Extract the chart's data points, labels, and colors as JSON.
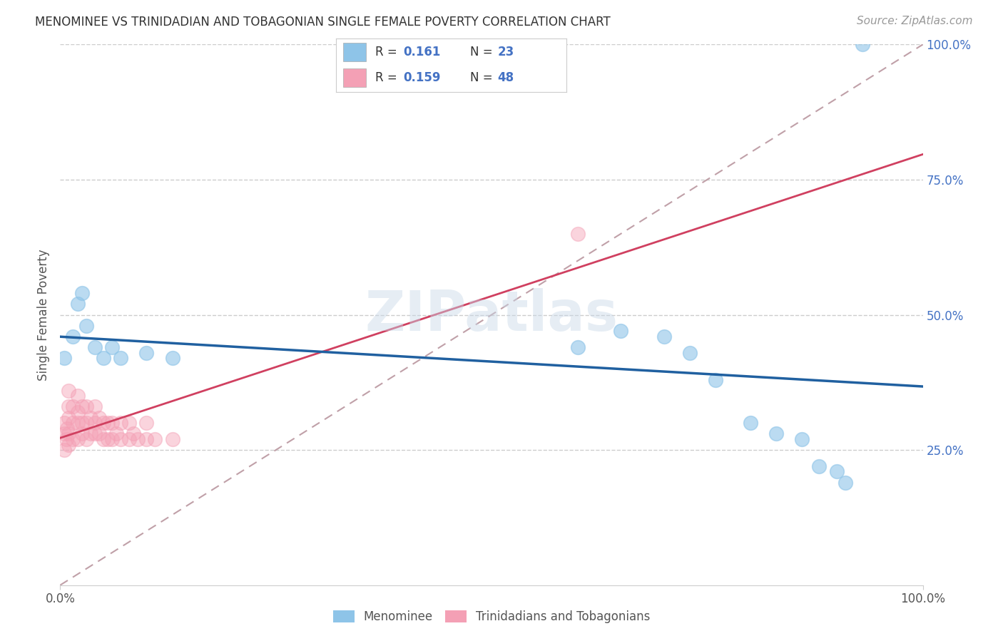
{
  "title": "MENOMINEE VS TRINIDADIAN AND TOBAGONIAN SINGLE FEMALE POVERTY CORRELATION CHART",
  "source": "Source: ZipAtlas.com",
  "ylabel": "Single Female Poverty",
  "xlim": [
    0.0,
    1.0
  ],
  "ylim": [
    0.0,
    1.0
  ],
  "xtick_positions": [
    0.0,
    1.0
  ],
  "xtick_labels": [
    "0.0%",
    "100.0%"
  ],
  "ytick_positions": [
    0.25,
    0.5,
    0.75,
    1.0
  ],
  "ytick_labels": [
    "25.0%",
    "50.0%",
    "75.0%",
    "100.0%"
  ],
  "grid_color": "#cccccc",
  "color_blue": "#8ec4e8",
  "color_pink": "#f4a0b5",
  "trendline_blue": "#2060a0",
  "trendline_pink": "#d04060",
  "trendline_dashed_color": "#c0a0a8",
  "tick_color": "#4472c4",
  "legend_r1": "0.161",
  "legend_n1": "23",
  "legend_r2": "0.159",
  "legend_n2": "48",
  "menominee_x": [
    0.005,
    0.015,
    0.02,
    0.025,
    0.03,
    0.04,
    0.05,
    0.06,
    0.07,
    0.1,
    0.13,
    0.6,
    0.65,
    0.7,
    0.73,
    0.76,
    0.8,
    0.83,
    0.86,
    0.88,
    0.9,
    0.91,
    0.93
  ],
  "menominee_y": [
    0.42,
    0.46,
    0.52,
    0.54,
    0.48,
    0.44,
    0.42,
    0.44,
    0.42,
    0.43,
    0.42,
    0.44,
    0.47,
    0.46,
    0.43,
    0.38,
    0.3,
    0.28,
    0.27,
    0.22,
    0.21,
    0.19,
    1.0
  ],
  "trinidadian_x": [
    0.005,
    0.005,
    0.005,
    0.007,
    0.008,
    0.01,
    0.01,
    0.01,
    0.01,
    0.01,
    0.015,
    0.015,
    0.015,
    0.02,
    0.02,
    0.02,
    0.02,
    0.025,
    0.025,
    0.025,
    0.03,
    0.03,
    0.03,
    0.035,
    0.035,
    0.04,
    0.04,
    0.04,
    0.045,
    0.045,
    0.05,
    0.05,
    0.055,
    0.055,
    0.06,
    0.06,
    0.065,
    0.07,
    0.07,
    0.08,
    0.08,
    0.085,
    0.09,
    0.1,
    0.1,
    0.11,
    0.13,
    0.6
  ],
  "trinidadian_y": [
    0.28,
    0.3,
    0.25,
    0.27,
    0.29,
    0.26,
    0.28,
    0.31,
    0.33,
    0.36,
    0.27,
    0.3,
    0.33,
    0.27,
    0.3,
    0.32,
    0.35,
    0.28,
    0.3,
    0.33,
    0.27,
    0.3,
    0.33,
    0.28,
    0.31,
    0.28,
    0.3,
    0.33,
    0.28,
    0.31,
    0.27,
    0.3,
    0.27,
    0.3,
    0.27,
    0.3,
    0.28,
    0.27,
    0.3,
    0.27,
    0.3,
    0.28,
    0.27,
    0.27,
    0.3,
    0.27,
    0.27,
    0.65
  ],
  "legend_labels": [
    "Menominee",
    "Trinidadians and Tobagonians"
  ]
}
